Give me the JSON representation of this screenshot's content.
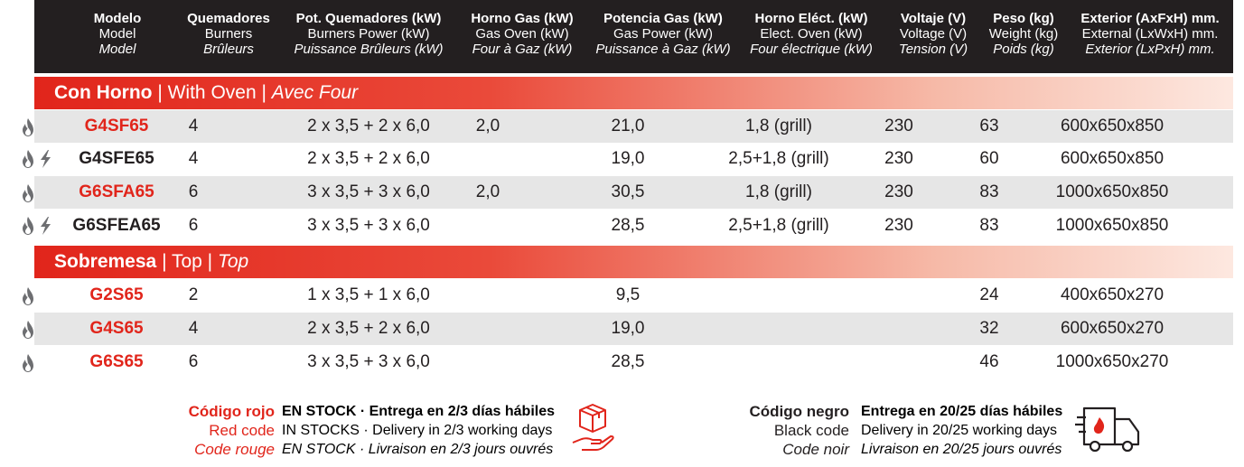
{
  "headers": [
    {
      "l1": "Modelo",
      "l2": "Model",
      "l3": "Model"
    },
    {
      "l1": "Quemadores",
      "l2": "Burners",
      "l3": "Brûleurs"
    },
    {
      "l1": "Pot. Quemadores (kW)",
      "l2": "Burners Power (kW)",
      "l3": "Puissance Brûleurs (kW)"
    },
    {
      "l1": "Horno Gas (kW)",
      "l2": "Gas Oven (kW)",
      "l3": "Four à Gaz (kW)"
    },
    {
      "l1": "Potencia Gas (kW)",
      "l2": "Gas Power (kW)",
      "l3": "Puissance à Gaz (kW)"
    },
    {
      "l1": "Horno Eléct. (kW)",
      "l2": "Elect. Oven (kW)",
      "l3": "Four électrique (kW)"
    },
    {
      "l1": "Voltaje (V)",
      "l2": "Voltage (V)",
      "l3": "Tension (V)"
    },
    {
      "l1": "Peso (kg)",
      "l2": "Weight (kg)",
      "l3": "Poids (kg)"
    },
    {
      "l1": "Exterior (AxFxH) mm.",
      "l2": "External (LxWxH) mm.",
      "l3": "Exterior (LxPxH) mm."
    }
  ],
  "sections": [
    {
      "es": "Con Horno",
      "sep1": " | ",
      "en": "With Oven",
      "sep2": " | ",
      "fr": "Avec Four"
    },
    {
      "es": "Sobremesa",
      "sep1": " | ",
      "en": "Top",
      "sep2": " | ",
      "fr": "Top"
    }
  ],
  "rows": [
    {
      "model": "G4SF65",
      "code_color": "red",
      "icons": "flame",
      "burners": "4",
      "burner_power": "2 x 3,5 + 2 x 6,0",
      "gas_oven": "2,0",
      "gas_power": "21,0",
      "elec_oven": "1,8 (grill)",
      "voltage": "230",
      "weight": "63",
      "exterior": "600x650x850"
    },
    {
      "model": "G4SFE65",
      "code_color": "black",
      "icons": "flame+bolt",
      "burners": "4",
      "burner_power": "2 x 3,5 + 2 x 6,0",
      "gas_oven": "",
      "gas_power": "19,0",
      "elec_oven": "2,5+1,8 (grill)",
      "voltage": "230",
      "weight": "60",
      "exterior": "600x650x850"
    },
    {
      "model": "G6SFA65",
      "code_color": "red",
      "icons": "flame",
      "burners": "6",
      "burner_power": "3 x 3,5 + 3 x 6,0",
      "gas_oven": "2,0",
      "gas_power": "30,5",
      "elec_oven": "1,8 (grill)",
      "voltage": "230",
      "weight": "83",
      "exterior": "1000x650x850"
    },
    {
      "model": "G6SFEA65",
      "code_color": "black",
      "icons": "flame+bolt",
      "burners": "6",
      "burner_power": "3 x 3,5 + 3 x 6,0",
      "gas_oven": "",
      "gas_power": "28,5",
      "elec_oven": "2,5+1,8 (grill)",
      "voltage": "230",
      "weight": "83",
      "exterior": "1000x650x850"
    },
    {
      "model": "G2S65",
      "code_color": "red",
      "icons": "flame",
      "burners": "2",
      "burner_power": "1 x 3,5 + 1 x 6,0",
      "gas_oven": "",
      "gas_power": "9,5",
      "elec_oven": "",
      "voltage": "",
      "weight": "24",
      "exterior": "400x650x270"
    },
    {
      "model": "G4S65",
      "code_color": "red",
      "icons": "flame",
      "burners": "4",
      "burner_power": "2 x 3,5 + 2 x 6,0",
      "gas_oven": "",
      "gas_power": "19,0",
      "elec_oven": "",
      "voltage": "",
      "weight": "32",
      "exterior": "600x650x270"
    },
    {
      "model": "G6S65",
      "code_color": "red",
      "icons": "flame",
      "burners": "6",
      "burner_power": "3 x 3,5 + 3 x 6,0",
      "gas_oven": "",
      "gas_power": "28,5",
      "elec_oven": "",
      "voltage": "",
      "weight": "46",
      "exterior": "1000x650x270"
    }
  ],
  "legend": {
    "red": {
      "es": "Código rojo",
      "en": "Red code",
      "fr": "Code rouge",
      "es_txt": "EN STOCK · Entrega en 2/3 días hábiles",
      "en_txt": "IN STOCKS · Delivery in 2/3 working days",
      "fr_txt": "EN STOCK · Livraison en 2/3 jours ouvrés",
      "icon": "box-in-hand-icon"
    },
    "black": {
      "es": "Código negro",
      "en": "Black code",
      "fr": "Code noir",
      "es_txt": "Entrega en 20/25 días hábiles",
      "en_txt": "Delivery in 20/25 working days",
      "fr_txt": "Livraison en 20/25 jours ouvrés",
      "icon": "delivery-truck-icon"
    }
  },
  "colors": {
    "header_bg": "#231f20",
    "accent_red": "#e1251b",
    "row_shade": "#e6e6e6",
    "icon_gray": "#6d6e71"
  }
}
